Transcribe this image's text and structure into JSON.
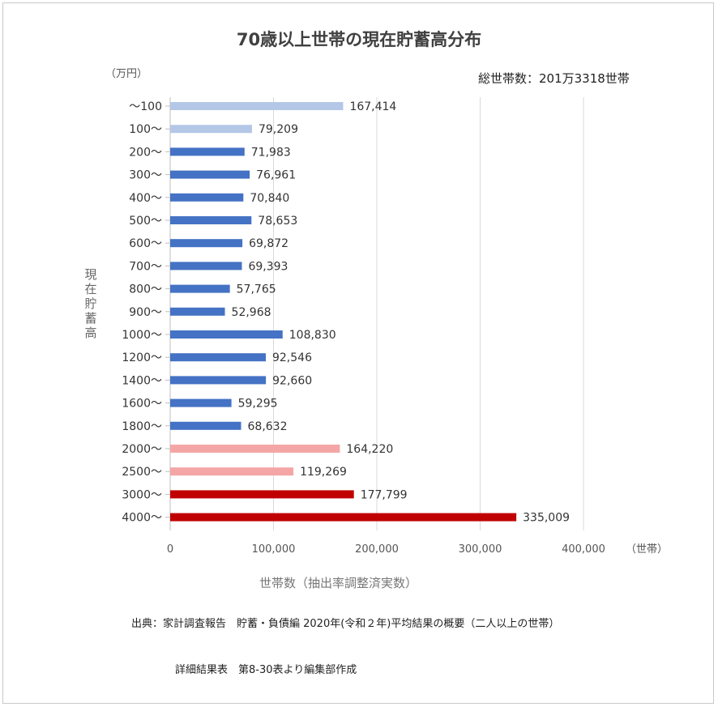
{
  "chart_data": {
    "type": "bar",
    "orientation": "horizontal",
    "title": "70歳以上世帯の現在貯蓄高分布",
    "subtitle": "総世帯数：201万3318世帯",
    "y_unit": "（万円）",
    "ylabel": "現在貯蓄高",
    "xlabel": "世帯数（抽出率調整済実数）",
    "x_unit": "（世帯）",
    "xlim": [
      0,
      400000
    ],
    "x_ticks": [
      "0",
      "100,000",
      "200,000",
      "300,000",
      "400,000"
    ],
    "grid": "vertical",
    "categories": [
      "～100",
      "100～",
      "200～",
      "300～",
      "400～",
      "500～",
      "600～",
      "700～",
      "800～",
      "900～",
      "1000～",
      "1200～",
      "1400～",
      "1600～",
      "1800～",
      "2000～",
      "2500～",
      "3000～",
      "4000～"
    ],
    "values": [
      167414,
      79209,
      71983,
      76961,
      70840,
      78653,
      69872,
      69393,
      57765,
      52968,
      108830,
      92546,
      92660,
      59295,
      68632,
      164220,
      119269,
      177799,
      335009
    ],
    "value_labels": [
      "167,414",
      "79,209",
      "71,983",
      "76,961",
      "70,840",
      "78,653",
      "69,872",
      "69,393",
      "57,765",
      "52,968",
      "108,830",
      "92,546",
      "92,660",
      "59,295",
      "68,632",
      "164,220",
      "119,269",
      "177,799",
      "335,009"
    ],
    "colors": [
      "#b4c7e7",
      "#b4c7e7",
      "#4472c4",
      "#4472c4",
      "#4472c4",
      "#4472c4",
      "#4472c4",
      "#4472c4",
      "#4472c4",
      "#4472c4",
      "#4472c4",
      "#4472c4",
      "#4472c4",
      "#4472c4",
      "#4472c4",
      "#f4a6a6",
      "#f4a6a6",
      "#c00000",
      "#c00000"
    ]
  },
  "source": {
    "line1": "出典：家計調査報告　貯蓄・負債編 2020年(令和２年)平均結果の概要（二人以上の世帯）",
    "line2": "詳細結果表　第8-30表より編集部作成"
  }
}
